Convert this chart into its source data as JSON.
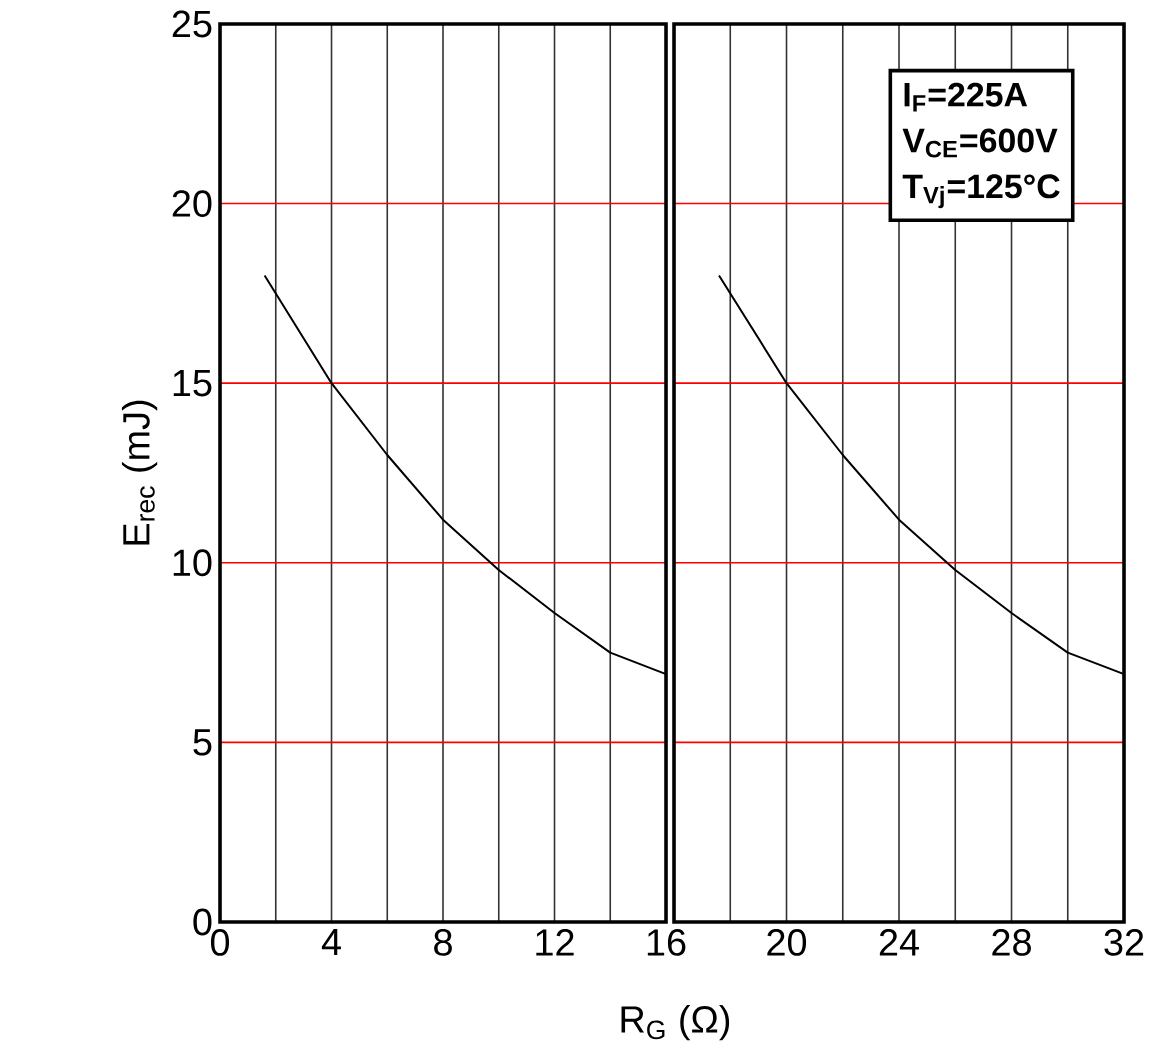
{
  "chart_data": [
    {
      "type": "line",
      "xlabel": "R$_{G}$ (Ω)",
      "ylabel": "E$_{rec}$ (mJ)",
      "color": "#000000",
      "x": [
        1.6,
        4,
        6,
        8,
        10,
        12,
        14,
        16
      ],
      "values": [
        18,
        15,
        13,
        11.2,
        9.8,
        8.6,
        7.5,
        6.9
      ],
      "xlim": [
        0,
        16
      ],
      "ylim": [
        0,
        25
      ],
      "xticks": [
        0,
        {
          "value": 2,
          "label": null
        },
        4,
        {
          "value": 6,
          "label": null
        },
        8,
        {
          "value": 10,
          "label": null
        },
        12,
        {
          "value": 14,
          "label": null
        },
        16
      ],
      "yticks": [
        0,
        5,
        10,
        15,
        20,
        25
      ],
      "grid": true
    },
    {
      "type": "line",
      "color": "#000000",
      "x": [
        17.6,
        20,
        22,
        24,
        26,
        28,
        30,
        32
      ],
      "values": [
        18,
        15,
        13,
        11.2,
        9.8,
        8.6,
        7.5,
        6.9
      ],
      "xlim": [
        16,
        32
      ],
      "ylim": [
        0,
        25
      ],
      "xticks": [
        {
          "value": 18,
          "label": null
        },
        20,
        {
          "value": 22,
          "label": null
        },
        24,
        {
          "value": 26,
          "label": null
        },
        28,
        {
          "value": 30,
          "label": null
        },
        32
      ],
      "yticks": [
        0,
        5,
        10,
        15,
        20,
        25
      ],
      "grid": true,
      "tick_labels": "x",
      "annotations": [
        "I$_{F}$=225A",
        "V$_{CE}$=600V",
        "T$_{Vj}$=125°C"
      ]
    }
  ]
}
